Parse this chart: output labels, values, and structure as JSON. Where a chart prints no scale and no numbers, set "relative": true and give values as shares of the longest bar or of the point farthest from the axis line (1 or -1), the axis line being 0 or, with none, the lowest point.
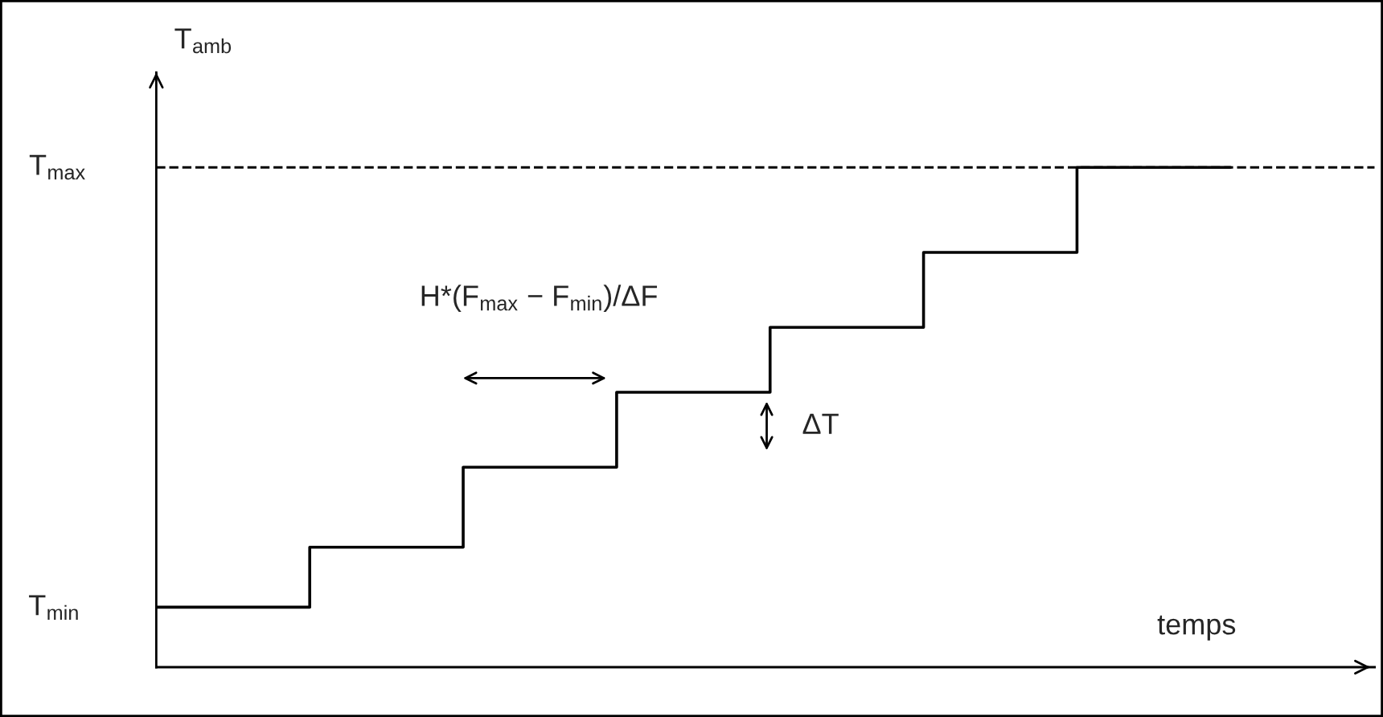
{
  "chart_data": {
    "type": "step",
    "relative": true,
    "xlabel": "temps",
    "ylabel": "T$_{amb}$",
    "categories": [
      null,
      null,
      null,
      null,
      null,
      null,
      null,
      null
    ],
    "series": [
      {
        "color": "#000000",
        "values": [
          0.12,
          0.24,
          0.4,
          0.55,
          0.68,
          0.83,
          1.0,
          1.0
        ]
      }
    ],
    "ref_lines": [
      {
        "axis": "y",
        "value": 1.0,
        "label": "T$_{max}$",
        "color": "#000000",
        "line_style": "dashed"
      }
    ],
    "annotations": [
      "T$_{min}$",
      "H*(F$_{max}$ − F$_{min}$)/ΔF",
      "ΔT"
    ],
    "marker": "none",
    "line_style": "solid"
  }
}
